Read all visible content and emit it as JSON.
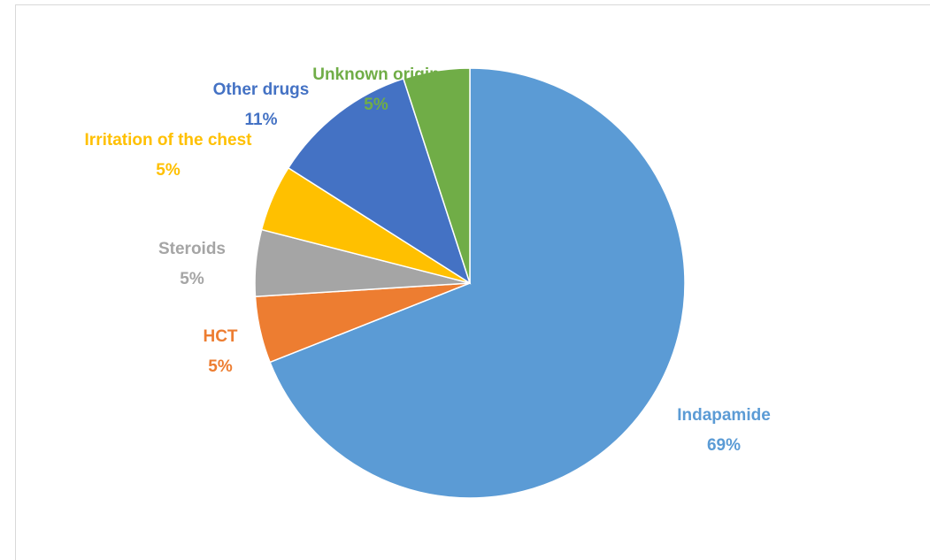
{
  "chart_data": {
    "type": "pie",
    "categories": [
      "Indapamide",
      "HCT",
      "Steroids",
      "Irritation of the chest",
      "Other drugs",
      "Unknown origin"
    ],
    "values": [
      69,
      5,
      5,
      5,
      11,
      5
    ],
    "value_labels": [
      "69%",
      "5%",
      "5%",
      "5%",
      "11%",
      "5%"
    ],
    "colors": [
      "#5b9bd5",
      "#ed7d31",
      "#a5a5a5",
      "#ffc000",
      "#4472c4",
      "#70ad47"
    ]
  }
}
